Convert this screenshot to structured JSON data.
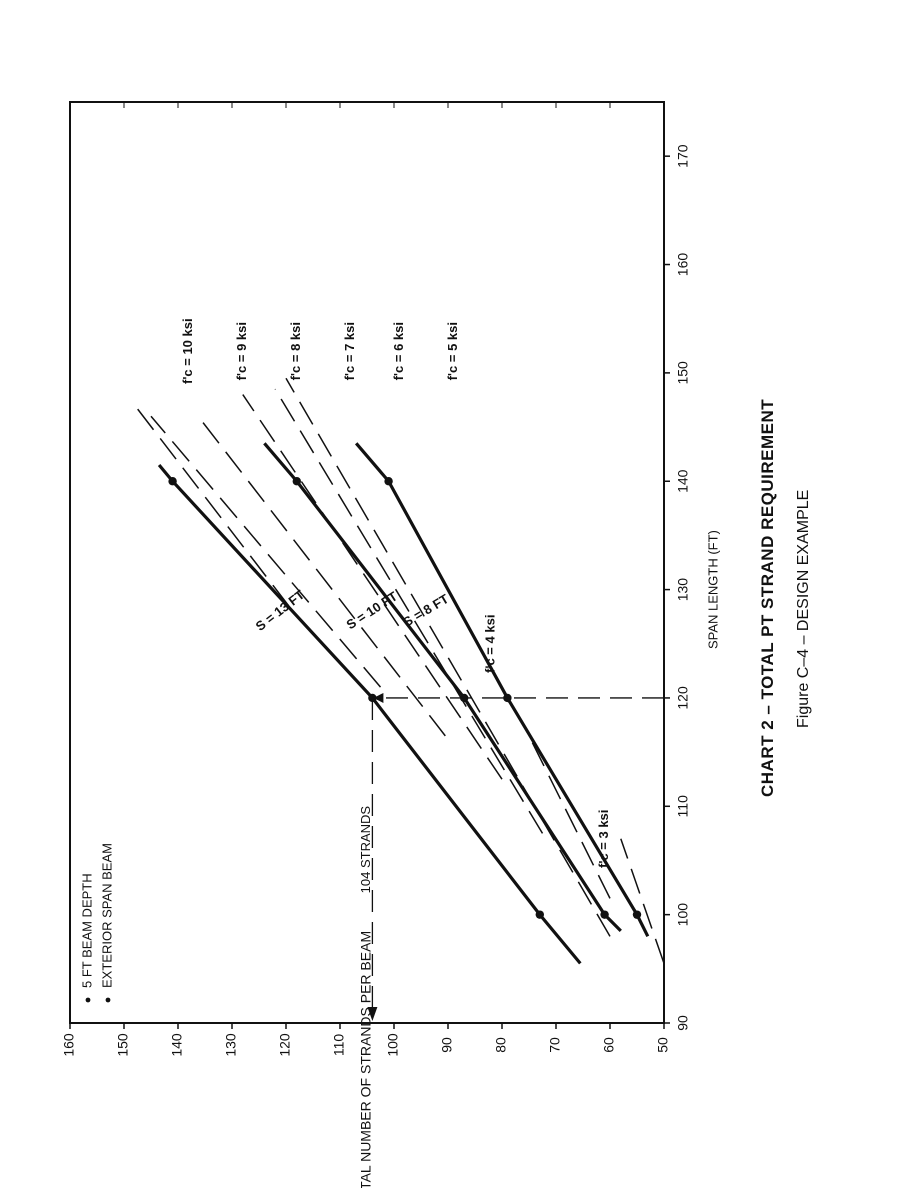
{
  "chart_data": {
    "type": "line",
    "title": "CHART 2 – TOTAL PT STRAND REQUIREMENT",
    "subtitle": "Figure C–4 – DESIGN EXAMPLE",
    "xlabel": "SPAN LENGTH (FT)",
    "ylabel": "TOTAL NUMBER OF STRANDS PER BEAM",
    "xlim": [
      90,
      175
    ],
    "ylim": [
      50,
      160
    ],
    "xticks": [
      90,
      100,
      110,
      120,
      130,
      140,
      150,
      160,
      170
    ],
    "yticks": [
      50,
      60,
      70,
      80,
      90,
      100,
      110,
      120,
      130,
      140,
      150,
      160
    ],
    "legend": [
      "5 FT BEAM DEPTH",
      "EXTERIOR SPAN BEAM"
    ],
    "legend_position": "top-left",
    "series": [
      {
        "name": "S = 13 FT",
        "x": [
          95.5,
          100,
          120,
          140,
          141.5
        ],
        "y": [
          65.5,
          73,
          104,
          141,
          143.5
        ],
        "markers": [
          [
            100,
            73
          ],
          [
            120,
            104
          ],
          [
            140,
            141
          ]
        ]
      },
      {
        "name": "S = 10 FT",
        "x": [
          98.5,
          100,
          120,
          140,
          143.5
        ],
        "y": [
          58,
          61,
          87,
          118,
          124
        ],
        "markers": [
          [
            100,
            61
          ],
          [
            120,
            87
          ],
          [
            140,
            118
          ]
        ]
      },
      {
        "name": "S = 8 FT",
        "x": [
          98,
          100,
          120,
          140,
          143.5
        ],
        "y": [
          53,
          55,
          79,
          101,
          107
        ],
        "markers": [
          [
            100,
            55
          ],
          [
            120,
            79
          ],
          [
            140,
            101
          ]
        ]
      }
    ],
    "strength_lines": [
      {
        "name": "f'c = 10 ksi",
        "x": [
          128.5,
          147
        ],
        "y": [
          119.5,
          148
        ]
      },
      {
        "name": "f'c = 9 ksi",
        "x": [
          121,
          146
        ],
        "y": [
          102.5,
          145
        ]
      },
      {
        "name": "f'c = 8 ksi",
        "x": [
          116.5,
          145.5
        ],
        "y": [
          90.5,
          135.5
        ]
      },
      {
        "name": "f'c = 7 ksi",
        "x": [
          112.5,
          148
        ],
        "y": [
          80,
          128
        ]
      },
      {
        "name": "f'c = 6 ksi",
        "x": [
          107.5,
          148.5
        ],
        "y": [
          72.5,
          122
        ]
      },
      {
        "name": "f'c = 4 ksi",
        "x": [
          101.5,
          117.5
        ],
        "y": [
          60,
          76
        ]
      },
      {
        "name": "f'c = 3 ksi",
        "x": [
          95.5,
          107
        ],
        "y": [
          50,
          58
        ]
      },
      {
        "name": "f'c = 5 ksi",
        "x": [
          98,
          149.5
        ],
        "y": [
          60,
          120
        ]
      }
    ],
    "annotation": {
      "label": "104 STRANDS",
      "span": 120,
      "strands": 104
    }
  }
}
